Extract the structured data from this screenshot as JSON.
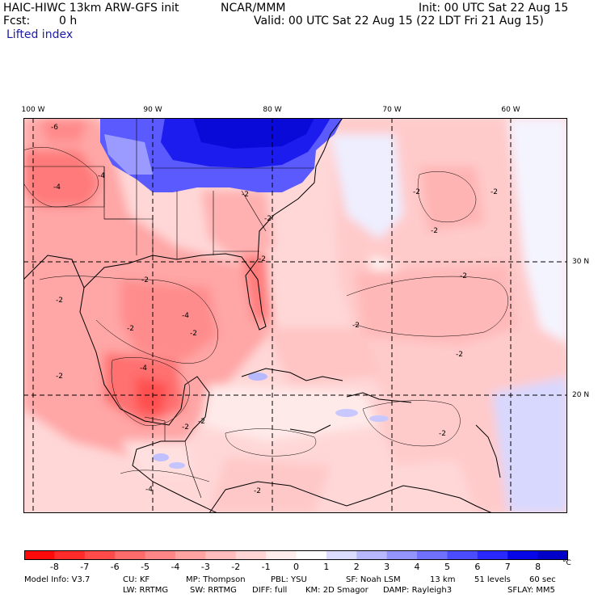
{
  "header": {
    "title": "HAIC-HIWC 13km ARW-GFS init",
    "org": "NCAR/MMM",
    "init": "Init: 00 UTC Sat 22 Aug 15",
    "fcst_label": "Fcst:",
    "fcst_value": "0 h",
    "valid": "Valid: 00 UTC Sat 22 Aug 15 (22 LDT Fri 21 Aug 15)",
    "field": "Lifted index"
  },
  "map": {
    "lon_labels": [
      "100 W",
      "90 W",
      "80 W",
      "70 W",
      "60 W"
    ],
    "lat_labels": [
      "30 N",
      "20 N"
    ],
    "contour_labels": [
      "-6",
      "-4",
      "-4",
      "-2",
      "-2",
      "-2",
      "-2",
      "-2",
      "-4",
      "-2",
      "-2",
      "-4",
      "-2",
      "-2",
      "-2",
      "-4",
      "-2",
      "-2",
      "-2",
      "-2",
      "-2",
      "-2",
      "-2",
      "-2"
    ]
  },
  "colorbar": {
    "ticks": [
      "-8",
      "-7",
      "-6",
      "-5",
      "-4",
      "-3",
      "-2",
      "-1",
      "0",
      "1",
      "2",
      "3",
      "4",
      "5",
      "6",
      "7",
      "8"
    ],
    "unit": "°C",
    "colors": [
      "#ff0a0a",
      "#ff2a2a",
      "#ff4a4a",
      "#ff6a6a",
      "#ff8686",
      "#ffa2a2",
      "#ffbcbc",
      "#ffd4d4",
      "#ffecec",
      "#ffffff",
      "#dcdcff",
      "#b8b8ff",
      "#9494ff",
      "#7070ff",
      "#4c4cff",
      "#2828ff",
      "#0606e6",
      "#0000c8"
    ]
  },
  "footer": {
    "line1": [
      "Model Info: V3.7",
      "CU: KF",
      "MP: Thompson",
      "PBL: YSU",
      "SF: Noah LSM",
      "13 km",
      "51 levels",
      "60 sec"
    ],
    "line2": [
      "LW: RRTMG",
      "SW: RRTMG",
      "DIFF: full",
      "KM: 2D Smagor",
      "DAMP: Rayleigh3",
      "SFLAY: MM5"
    ]
  }
}
